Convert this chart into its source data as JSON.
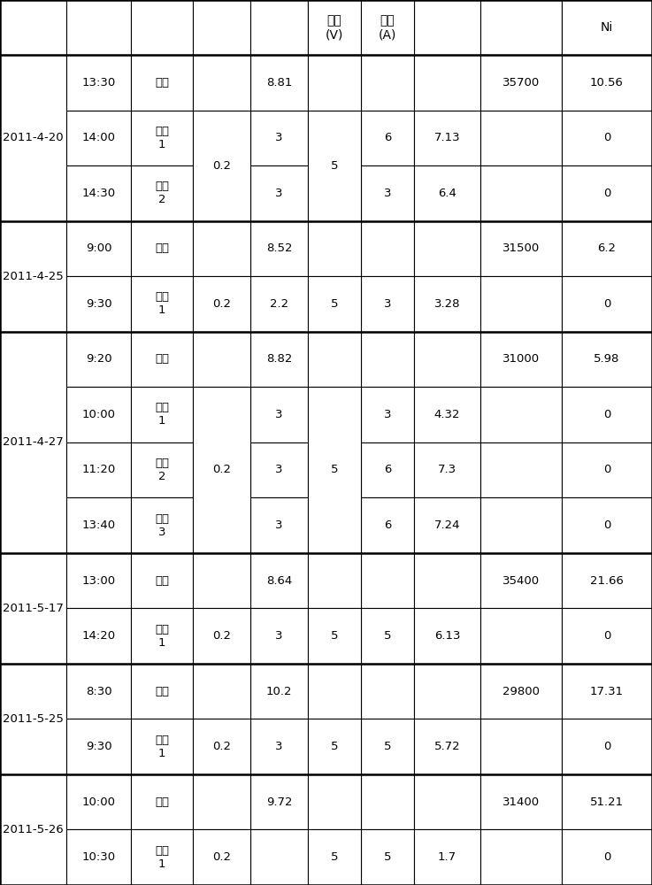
{
  "sections": [
    {
      "date": "2011-4-20",
      "rows": [
        {
          "time": "13:30",
          "type": "原水",
          "c1": "",
          "ph": "8.81",
          "v": "",
          "i_v": "",
          "i_a": "",
          "c2": "35700",
          "ni": "10.56"
        },
        {
          "time": "14:00",
          "type": "电凝\n1",
          "c1": "0.2",
          "ph": "3",
          "v": "5",
          "i_v": "6",
          "i_a": "7.13",
          "c2": "",
          "ni": "0"
        },
        {
          "time": "14:30",
          "type": "电凝\n2",
          "c1": "",
          "ph": "3",
          "v": "",
          "i_v": "3",
          "i_a": "6.4",
          "c2": "",
          "ni": "0"
        }
      ]
    },
    {
      "date": "2011-4-25",
      "rows": [
        {
          "time": "9:00",
          "type": "原水",
          "c1": "",
          "ph": "8.52",
          "v": "",
          "i_v": "",
          "i_a": "",
          "c2": "31500",
          "ni": "6.2"
        },
        {
          "time": "9:30",
          "type": "电凝\n1",
          "c1": "0.2",
          "ph": "2.2",
          "v": "5",
          "i_v": "3",
          "i_a": "3.28",
          "c2": "",
          "ni": "0"
        }
      ]
    },
    {
      "date": "2011-4-27",
      "rows": [
        {
          "time": "9:20",
          "type": "原水",
          "c1": "",
          "ph": "8.82",
          "v": "",
          "i_v": "",
          "i_a": "",
          "c2": "31000",
          "ni": "5.98"
        },
        {
          "time": "10:00",
          "type": "电凝\n1",
          "c1": "0.2",
          "ph": "3",
          "v": "5",
          "i_v": "3",
          "i_a": "4.32",
          "c2": "",
          "ni": "0"
        },
        {
          "time": "11:20",
          "type": "电凝\n2",
          "c1": "",
          "ph": "3",
          "v": "",
          "i_v": "6",
          "i_a": "7.3",
          "c2": "",
          "ni": "0"
        },
        {
          "time": "13:40",
          "type": "电凝\n3",
          "c1": "",
          "ph": "3",
          "v": "",
          "i_v": "6",
          "i_a": "7.24",
          "c2": "",
          "ni": "0"
        }
      ]
    },
    {
      "date": "2011-5-17",
      "rows": [
        {
          "time": "13:00",
          "type": "原水",
          "c1": "",
          "ph": "8.64",
          "v": "",
          "i_v": "",
          "i_a": "",
          "c2": "35400",
          "ni": "21.66"
        },
        {
          "time": "14:20",
          "type": "电凝\n1",
          "c1": "0.2",
          "ph": "3",
          "v": "5",
          "i_v": "5",
          "i_a": "6.13",
          "c2": "",
          "ni": "0"
        }
      ]
    },
    {
      "date": "2011-5-25",
      "rows": [
        {
          "time": "8:30",
          "type": "原水",
          "c1": "",
          "ph": "10.2",
          "v": "",
          "i_v": "",
          "i_a": "",
          "c2": "29800",
          "ni": "17.31"
        },
        {
          "time": "9:30",
          "type": "电凝\n1",
          "c1": "0.2",
          "ph": "3",
          "v": "5",
          "i_v": "5",
          "i_a": "5.72",
          "c2": "",
          "ni": "0"
        }
      ]
    },
    {
      "date": "2011-5-26",
      "rows": [
        {
          "time": "10:00",
          "type": "原水",
          "c1": "",
          "ph": "9.72",
          "v": "",
          "i_v": "",
          "i_a": "",
          "c2": "31400",
          "ni": "51.21"
        },
        {
          "time": "10:30",
          "type": "电凝\n1",
          "c1": "0.2",
          "ph": "",
          "v": "5",
          "i_v": "5",
          "i_a": "1.7",
          "c2": "",
          "ni": "0"
        }
      ]
    }
  ],
  "header_col5": "电压\n(V)",
  "header_col6": "电流\n(A)",
  "header_col9": "Ni",
  "bg_color": "#ffffff",
  "font_size": 9.5,
  "header_font_size": 10
}
